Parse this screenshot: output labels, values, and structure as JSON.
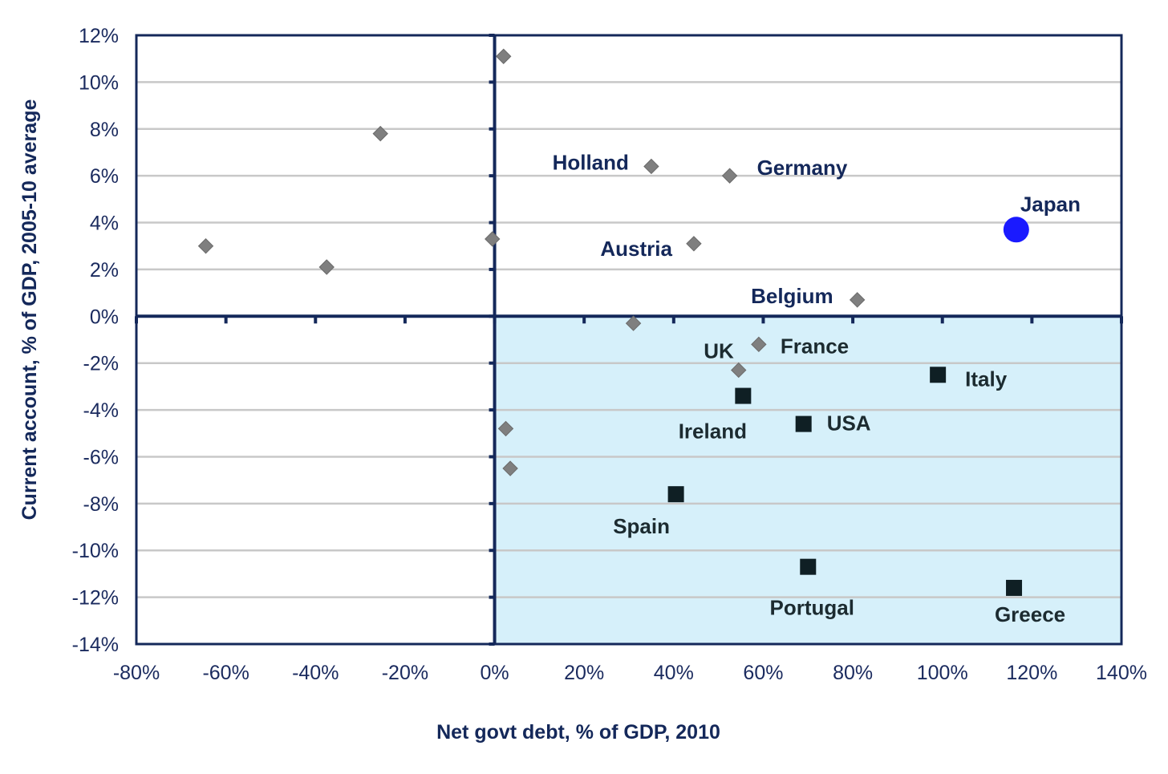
{
  "chart_data": {
    "type": "scatter",
    "title": "",
    "xlabel": "Net govt debt, % of GDP, 2010",
    "ylabel": "Current account, % of GDP, 2005-10 average",
    "xlim": [
      -80,
      140
    ],
    "ylim": [
      -14,
      12
    ],
    "xticks": [
      "-80%",
      "-60%",
      "-40%",
      "-20%",
      "0%",
      "20%",
      "40%",
      "60%",
      "80%",
      "100%",
      "120%",
      "140%"
    ],
    "yticks": [
      "12%",
      "10%",
      "8%",
      "6%",
      "4%",
      "2%",
      "0%",
      "-2%",
      "-4%",
      "-6%",
      "-8%",
      "-10%",
      "-12%",
      "-14%"
    ],
    "grid": "horizontal",
    "shaded_quadrant": "x>0, y<0",
    "colors": {
      "axis": "#14285a",
      "grid": "#c8c8c8",
      "shade": "#d6f0fa",
      "diamond": "#7f7f7f",
      "square": "#0f1f24",
      "japan": "#1a1aff",
      "label_top": "#14285a",
      "label_bottom": "#1c2b30"
    },
    "points": [
      {
        "x": -64.5,
        "y": 3.0,
        "marker": "diamond",
        "label": ""
      },
      {
        "x": -37.5,
        "y": 2.1,
        "marker": "diamond",
        "label": ""
      },
      {
        "x": -25.5,
        "y": 7.8,
        "marker": "diamond",
        "label": ""
      },
      {
        "x": -0.5,
        "y": 3.3,
        "marker": "diamond",
        "label": ""
      },
      {
        "x": 2,
        "y": 11.1,
        "marker": "diamond",
        "label": ""
      },
      {
        "x": 35,
        "y": 6.4,
        "marker": "diamond",
        "label": "Holland"
      },
      {
        "x": 52.5,
        "y": 6.0,
        "marker": "diamond",
        "label": "Germany"
      },
      {
        "x": 44.5,
        "y": 3.1,
        "marker": "diamond",
        "label": "Austria"
      },
      {
        "x": 81,
        "y": 0.7,
        "marker": "diamond",
        "label": "Belgium"
      },
      {
        "x": 116.5,
        "y": 3.7,
        "marker": "circle",
        "label": "Japan"
      },
      {
        "x": 31,
        "y": -0.3,
        "marker": "diamond",
        "label": ""
      },
      {
        "x": 59,
        "y": -1.2,
        "marker": "diamond",
        "label": "France"
      },
      {
        "x": 54.5,
        "y": -2.3,
        "marker": "diamond",
        "label": "UK"
      },
      {
        "x": 2.5,
        "y": -4.8,
        "marker": "diamond",
        "label": ""
      },
      {
        "x": 3.5,
        "y": -6.5,
        "marker": "diamond",
        "label": ""
      },
      {
        "x": 99,
        "y": -2.5,
        "marker": "square",
        "label": "Italy"
      },
      {
        "x": 55.5,
        "y": -3.4,
        "marker": "square",
        "label": "Ireland"
      },
      {
        "x": 69,
        "y": -4.6,
        "marker": "square",
        "label": "USA"
      },
      {
        "x": 40.5,
        "y": -7.6,
        "marker": "square",
        "label": "Spain"
      },
      {
        "x": 70,
        "y": -10.7,
        "marker": "square",
        "label": "Portugal"
      },
      {
        "x": 116,
        "y": -11.6,
        "marker": "square",
        "label": "Greece"
      }
    ]
  }
}
